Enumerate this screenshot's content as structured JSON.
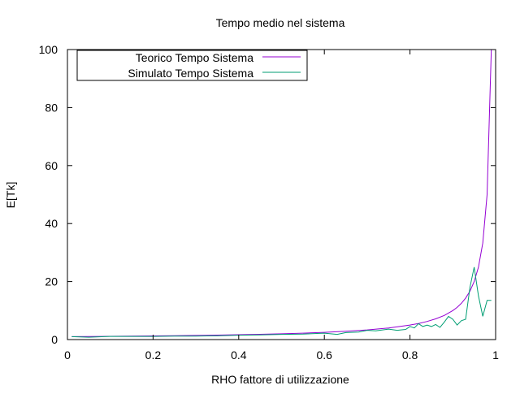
{
  "chart_data": {
    "type": "line",
    "title": "Tempo medio nel sistema",
    "xlabel": "RHO fattore di utilizzazione",
    "ylabel": "E[Tk]",
    "xlim": [
      0,
      1
    ],
    "ylim": [
      0,
      100
    ],
    "x_ticks": [
      "0",
      "0.2",
      "0.4",
      "0.6",
      "0.8",
      "1"
    ],
    "y_ticks": [
      "0",
      "20",
      "40",
      "60",
      "80",
      "100"
    ],
    "grid": false,
    "legend_position": "top-left",
    "series": [
      {
        "name": "Teorico Tempo Sistema",
        "color": "#9400d3",
        "x": [
          0.01,
          0.05,
          0.1,
          0.15,
          0.2,
          0.25,
          0.3,
          0.35,
          0.4,
          0.45,
          0.5,
          0.55,
          0.6,
          0.65,
          0.7,
          0.75,
          0.8,
          0.82,
          0.84,
          0.86,
          0.88,
          0.9,
          0.91,
          0.92,
          0.93,
          0.94,
          0.95,
          0.96,
          0.97,
          0.98,
          0.99
        ],
        "values": [
          1.01,
          1.05,
          1.11,
          1.18,
          1.25,
          1.33,
          1.43,
          1.54,
          1.67,
          1.82,
          2.0,
          2.22,
          2.5,
          2.86,
          3.33,
          4.0,
          5.0,
          5.56,
          6.25,
          7.14,
          8.33,
          10.0,
          11.1,
          12.5,
          14.3,
          16.7,
          20.0,
          25.0,
          33.3,
          50.0,
          100.0
        ]
      },
      {
        "name": "Simulato Tempo Sistema",
        "color": "#009e73",
        "x": [
          0.01,
          0.05,
          0.1,
          0.15,
          0.2,
          0.25,
          0.3,
          0.35,
          0.4,
          0.45,
          0.5,
          0.55,
          0.6,
          0.63,
          0.65,
          0.68,
          0.7,
          0.72,
          0.75,
          0.77,
          0.79,
          0.8,
          0.81,
          0.82,
          0.83,
          0.84,
          0.85,
          0.86,
          0.87,
          0.88,
          0.89,
          0.9,
          0.91,
          0.92,
          0.93,
          0.94,
          0.95,
          0.96,
          0.97,
          0.98,
          0.99
        ],
        "values": [
          1.0,
          0.8,
          1.1,
          1.1,
          1.1,
          1.2,
          1.2,
          1.3,
          1.5,
          1.6,
          1.8,
          1.9,
          2.2,
          1.8,
          2.4,
          2.6,
          3.2,
          3.0,
          3.6,
          3.2,
          3.5,
          4.5,
          4.0,
          5.5,
          4.5,
          5.0,
          4.5,
          5.2,
          4.2,
          6.0,
          8.0,
          7.0,
          5.0,
          6.5,
          7.0,
          18.0,
          25.0,
          15.0,
          8.0,
          13.5,
          13.5
        ]
      }
    ]
  }
}
